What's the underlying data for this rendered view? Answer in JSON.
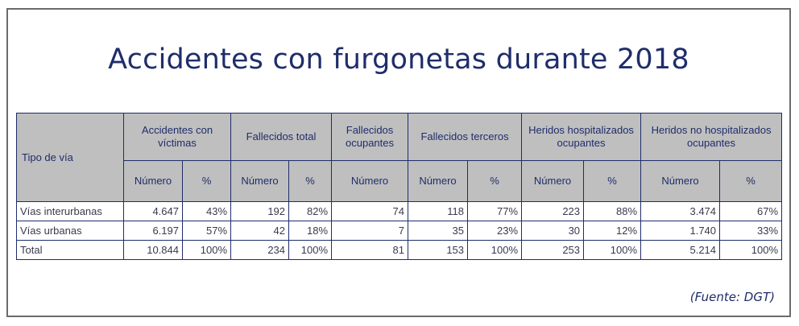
{
  "title": "Accidentes con furgonetas durante 2018",
  "table": {
    "row_header": "Tipo de vía",
    "groups": [
      "Accidentes con víctimas",
      "Fallecidos total",
      "Fallecidos ocupantes",
      "Fallecidos terceros",
      "Heridos hospitalizados ocupantes",
      "Heridos no hospitalizados ocupantes"
    ],
    "sub": {
      "numero": "Número",
      "pct": "%"
    },
    "rows": [
      {
        "label": "Vías interurbanas",
        "cells": [
          "4.647",
          "43%",
          "192",
          "82%",
          "74",
          "118",
          "77%",
          "223",
          "88%",
          "3.474",
          "67%"
        ]
      },
      {
        "label": "Vías urbanas",
        "cells": [
          "6.197",
          "57%",
          "42",
          "18%",
          "7",
          "35",
          "23%",
          "30",
          "12%",
          "1.740",
          "33%"
        ]
      },
      {
        "label": "Total",
        "cells": [
          "10.844",
          "100%",
          "234",
          "100%",
          "81",
          "153",
          "100%",
          "253",
          "100%",
          "5.214",
          "100%"
        ]
      }
    ]
  },
  "source": "(Fuente: DGT)"
}
